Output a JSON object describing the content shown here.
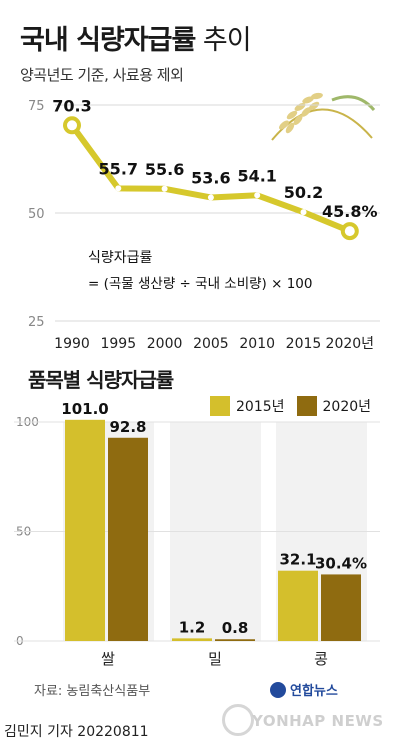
{
  "title": {
    "bold": "국내 식량자급률",
    "light": "추이"
  },
  "subtitle": "양곡년도 기준, 사료용 제외",
  "formula": {
    "label": "식량자급률",
    "expr": "= (곡물 생산량 ÷ 국내 소비량) × 100"
  },
  "bar_section_title": "품목별 식량자급률",
  "legend": [
    {
      "label": "2015년",
      "color": "#d4bf2c"
    },
    {
      "label": "2020년",
      "color": "#8f6b10"
    }
  ],
  "source": "자료: 농림축산식품부",
  "logo": "연합뉴스",
  "watermark": "YONHAP NEWS",
  "reporter": "김민지 기자  20220811",
  "colors": {
    "line": "#d6c82c",
    "marker_fill": "#ffffff",
    "bar2015": "#d4bf2c",
    "bar2020": "#8f6b10",
    "grid": "#d8d8d8"
  },
  "chart_data": [
    {
      "type": "line",
      "x": [
        "1990",
        "1995",
        "2000",
        "2005",
        "2010",
        "2015",
        "2020년"
      ],
      "values": [
        70.3,
        55.7,
        55.6,
        53.6,
        54.1,
        50.2,
        45.8
      ],
      "value_labels": [
        "70.3",
        "55.7",
        "55.6",
        "53.6",
        "54.1",
        "50.2",
        "45.8%"
      ],
      "yticks": [
        "75",
        "50",
        "25"
      ],
      "ylim": [
        25,
        75
      ],
      "grid": true
    },
    {
      "type": "bar",
      "categories": [
        "쌀",
        "밀",
        "콩"
      ],
      "series": [
        {
          "name": "2015년",
          "values": [
            101.0,
            1.2,
            32.1
          ],
          "labels": [
            "101.0",
            "1.2",
            "32.1"
          ]
        },
        {
          "name": "2020년",
          "values": [
            92.8,
            0.8,
            30.4
          ],
          "labels": [
            "92.8",
            "0.8",
            "30.4%"
          ]
        }
      ],
      "yticks": [
        "100",
        "50",
        "0"
      ],
      "ylim": [
        0,
        100
      ],
      "grid": true
    }
  ]
}
